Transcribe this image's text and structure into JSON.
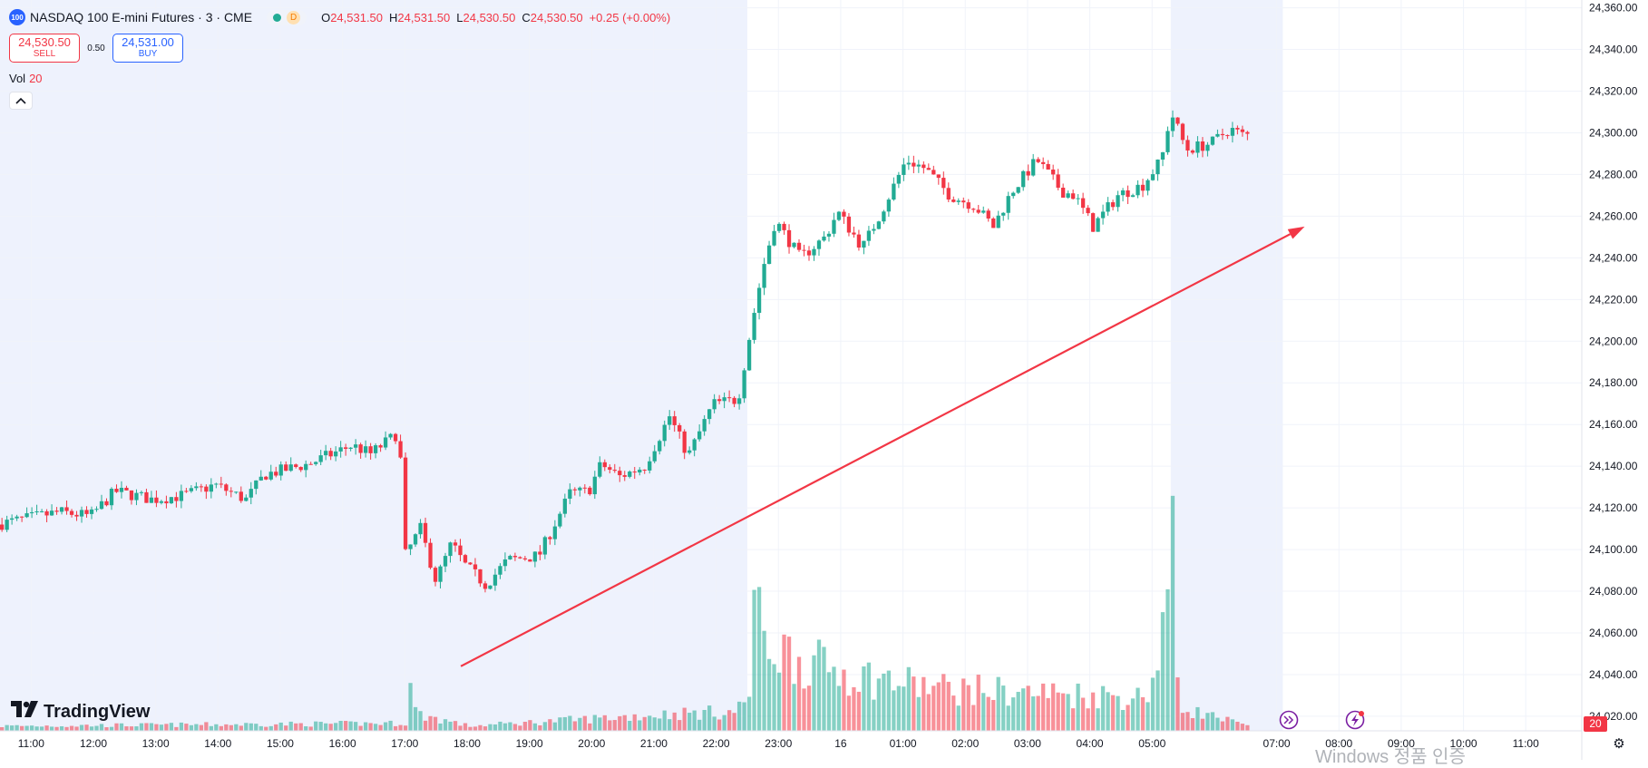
{
  "header": {
    "symbol_badge": "100",
    "symbol": "NASDAQ 100 E-mini Futures · 3 · CME",
    "status_badge": "D",
    "ohlc": [
      {
        "key": "O",
        "value": "24,531.50"
      },
      {
        "key": "H",
        "value": "24,531.50"
      },
      {
        "key": "L",
        "value": "24,530.50"
      },
      {
        "key": "C",
        "value": "24,530.50"
      }
    ],
    "change": "+0.25 (+0.00%)"
  },
  "trade": {
    "sell_price": "24,530.50",
    "sell_label": "SELL",
    "spread": "0.50",
    "buy_price": "24,531.00",
    "buy_label": "BUY"
  },
  "volume_legend": {
    "label": "Vol",
    "value": "20"
  },
  "collapse_icon": "chevron-up-icon",
  "brand": {
    "name": "TradingView"
  },
  "volume_badge": "20",
  "watermark": "Windows 정품 인증",
  "colors": {
    "up": "#22ab94",
    "down": "#f23645",
    "session_shade": "#eef2fd",
    "arrow": "#f23645"
  },
  "chart_data": {
    "type": "candlestick",
    "title": "NASDAQ 100 E-mini Futures · 3 · CME",
    "interval_minutes": 3,
    "y_ticks": [
      "24,360.00",
      "24,340.00",
      "24,320.00",
      "24,300.00",
      "24,280.00",
      "24,260.00",
      "24,240.00",
      "24,220.00",
      "24,200.00",
      "24,180.00",
      "24,160.00",
      "24,140.00",
      "24,120.00",
      "24,100.00",
      "24,080.00",
      "24,060.00",
      "24,040.00",
      "24,020.00"
    ],
    "x_ticks": [
      "11:00",
      "12:00",
      "13:00",
      "14:00",
      "15:00",
      "16:00",
      "17:00",
      "18:00",
      "19:00",
      "20:00",
      "21:00",
      "22:00",
      "23:00",
      "16",
      "01:00",
      "02:00",
      "03:00",
      "04:00",
      "05:00",
      "07:00",
      "08:00",
      "09:00",
      "10:00",
      "11:00"
    ],
    "ylim": [
      24013,
      24362
    ],
    "x_range_hours": [
      10.5,
      35.9
    ],
    "shaded_sessions_hours": [
      [
        10.5,
        22.5
      ],
      [
        29.3,
        31.1
      ]
    ],
    "price_path": [
      {
        "t": 10.5,
        "p": 24112
      },
      {
        "t": 11.5,
        "p": 24118
      },
      {
        "t": 12.0,
        "p": 24116
      },
      {
        "t": 12.4,
        "p": 24128
      },
      {
        "t": 13.0,
        "p": 24124
      },
      {
        "t": 13.5,
        "p": 24126
      },
      {
        "t": 14.0,
        "p": 24131
      },
      {
        "t": 14.5,
        "p": 24124
      },
      {
        "t": 14.8,
        "p": 24136
      },
      {
        "t": 15.5,
        "p": 24141
      },
      {
        "t": 16.2,
        "p": 24150
      },
      {
        "t": 16.5,
        "p": 24146
      },
      {
        "t": 16.9,
        "p": 24155
      },
      {
        "t": 17.0,
        "p": 24140
      },
      {
        "t": 17.05,
        "p": 24097
      },
      {
        "t": 17.3,
        "p": 24110
      },
      {
        "t": 17.55,
        "p": 24085
      },
      {
        "t": 17.8,
        "p": 24103
      },
      {
        "t": 18.0,
        "p": 24093
      },
      {
        "t": 18.35,
        "p": 24083
      },
      {
        "t": 18.7,
        "p": 24095
      },
      {
        "t": 19.2,
        "p": 24097
      },
      {
        "t": 19.7,
        "p": 24127
      },
      {
        "t": 20.0,
        "p": 24128
      },
      {
        "t": 20.2,
        "p": 24141
      },
      {
        "t": 20.5,
        "p": 24135
      },
      {
        "t": 20.9,
        "p": 24140
      },
      {
        "t": 21.3,
        "p": 24164
      },
      {
        "t": 21.6,
        "p": 24145
      },
      {
        "t": 22.0,
        "p": 24170
      },
      {
        "t": 22.4,
        "p": 24172
      },
      {
        "t": 22.6,
        "p": 24205
      },
      {
        "t": 22.8,
        "p": 24235
      },
      {
        "t": 23.0,
        "p": 24258
      },
      {
        "t": 23.4,
        "p": 24240
      },
      {
        "t": 23.8,
        "p": 24250
      },
      {
        "t": 24.0,
        "p": 24262
      },
      {
        "t": 24.4,
        "p": 24245
      },
      {
        "t": 24.7,
        "p": 24262
      },
      {
        "t": 25.1,
        "p": 24287
      },
      {
        "t": 25.4,
        "p": 24283
      },
      {
        "t": 25.8,
        "p": 24270
      },
      {
        "t": 26.2,
        "p": 24265
      },
      {
        "t": 26.5,
        "p": 24255
      },
      {
        "t": 26.8,
        "p": 24272
      },
      {
        "t": 27.2,
        "p": 24287
      },
      {
        "t": 27.6,
        "p": 24272
      },
      {
        "t": 27.8,
        "p": 24270
      },
      {
        "t": 28.1,
        "p": 24255
      },
      {
        "t": 28.5,
        "p": 24270
      },
      {
        "t": 28.9,
        "p": 24275
      },
      {
        "t": 29.2,
        "p": 24287
      },
      {
        "t": 29.35,
        "p": 24310
      },
      {
        "t": 29.6,
        "p": 24292
      },
      {
        "t": 30.0,
        "p": 24295
      },
      {
        "t": 30.3,
        "p": 24302
      },
      {
        "t": 30.5,
        "p": 24299
      }
    ],
    "volume_max": 185,
    "volume_path": [
      {
        "t": 10.5,
        "v": 5
      },
      {
        "t": 17.0,
        "v": 8
      },
      {
        "t": 17.05,
        "v": 50
      },
      {
        "t": 17.15,
        "v": 18
      },
      {
        "t": 18.0,
        "v": 5
      },
      {
        "t": 21.3,
        "v": 18
      },
      {
        "t": 22.3,
        "v": 20
      },
      {
        "t": 22.5,
        "v": 40
      },
      {
        "t": 22.55,
        "v": 155
      },
      {
        "t": 22.7,
        "v": 95
      },
      {
        "t": 23.5,
        "v": 70
      },
      {
        "t": 24.5,
        "v": 55
      },
      {
        "t": 25.5,
        "v": 45
      },
      {
        "t": 27.0,
        "v": 40
      },
      {
        "t": 28.0,
        "v": 38
      },
      {
        "t": 28.8,
        "v": 35
      },
      {
        "t": 29.0,
        "v": 55
      },
      {
        "t": 29.3,
        "v": 180
      },
      {
        "t": 29.4,
        "v": 25
      },
      {
        "t": 30.5,
        "v": 5
      }
    ],
    "annotation": {
      "type": "arrow",
      "from": {
        "t": 17.9,
        "p": 24044
      },
      "to": {
        "t": 31.45,
        "p": 24255
      }
    }
  }
}
